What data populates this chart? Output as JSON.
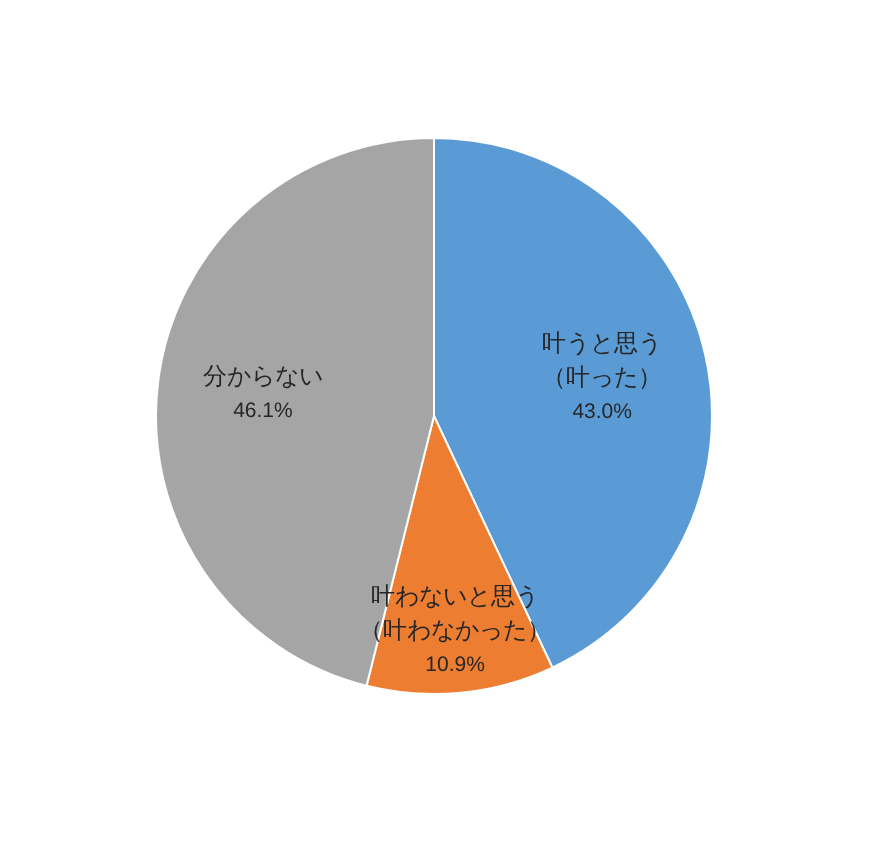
{
  "chart_data": {
    "type": "pie",
    "categories": [
      "叶うと思う（叶った）",
      "叶わないと思う（叶わなかった）",
      "分からない"
    ],
    "values": [
      43.0,
      10.9,
      46.1
    ],
    "value_labels": [
      "43.0%",
      "10.9%",
      "46.1%"
    ],
    "colors": [
      "#5b9bd5",
      "#ed7d31",
      "#a5a5a5"
    ]
  }
}
